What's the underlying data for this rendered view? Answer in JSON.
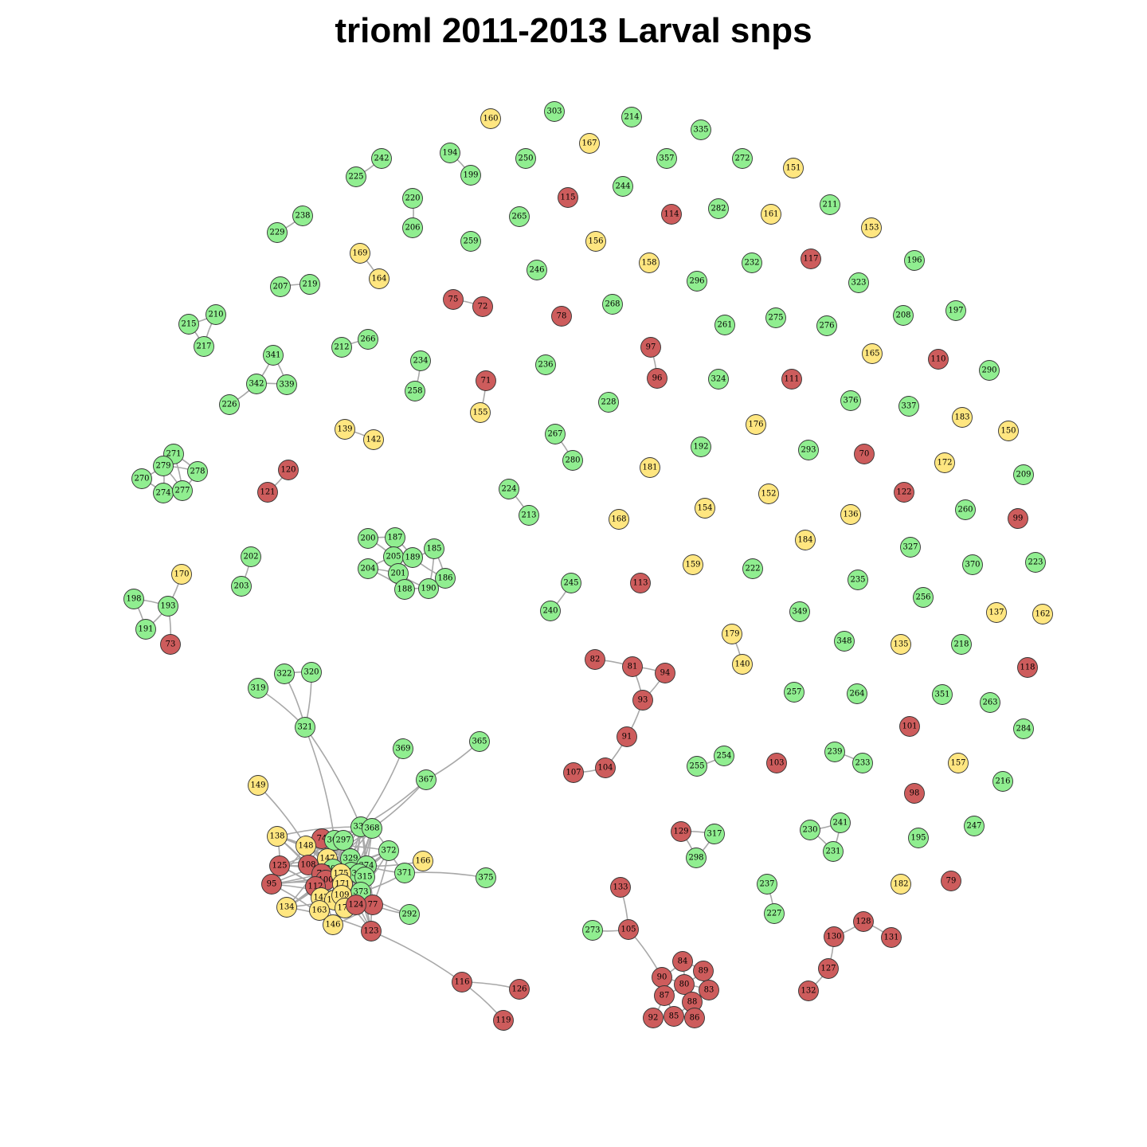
{
  "title": "trioml 2011-2013 Larval snps",
  "colors": {
    "green": "#90ee90",
    "red": "#cd5c5c",
    "yellow": "#ffe680",
    "edge": "#a8a8a8"
  },
  "nodes": [
    [
      "160",
      "yellow"
    ],
    [
      "303",
      "green"
    ],
    [
      "214",
      "green"
    ],
    [
      "335",
      "green"
    ],
    [
      "167",
      "yellow"
    ],
    [
      "272",
      "green"
    ],
    [
      "151",
      "yellow"
    ],
    [
      "242",
      "green"
    ],
    [
      "225",
      "green"
    ],
    [
      "194",
      "green"
    ],
    [
      "199",
      "green"
    ],
    [
      "250",
      "green"
    ],
    [
      "357",
      "green"
    ],
    [
      "220",
      "green"
    ],
    [
      "206",
      "green"
    ],
    [
      "115",
      "red"
    ],
    [
      "244",
      "green"
    ],
    [
      "265",
      "green"
    ],
    [
      "114",
      "red"
    ],
    [
      "282",
      "green"
    ],
    [
      "161",
      "yellow"
    ],
    [
      "211",
      "green"
    ],
    [
      "153",
      "yellow"
    ],
    [
      "238",
      "green"
    ],
    [
      "229",
      "green"
    ],
    [
      "259",
      "green"
    ],
    [
      "156",
      "yellow"
    ],
    [
      "158",
      "yellow"
    ],
    [
      "232",
      "green"
    ],
    [
      "117",
      "red"
    ],
    [
      "196",
      "green"
    ],
    [
      "169",
      "yellow"
    ],
    [
      "164",
      "yellow"
    ],
    [
      "246",
      "green"
    ],
    [
      "296",
      "green"
    ],
    [
      "323",
      "green"
    ],
    [
      "207",
      "green"
    ],
    [
      "219",
      "green"
    ],
    [
      "75",
      "red"
    ],
    [
      "72",
      "red"
    ],
    [
      "78",
      "red"
    ],
    [
      "268",
      "green"
    ],
    [
      "208",
      "green"
    ],
    [
      "197",
      "green"
    ],
    [
      "210",
      "green"
    ],
    [
      "215",
      "green"
    ],
    [
      "217",
      "green"
    ],
    [
      "261",
      "green"
    ],
    [
      "275",
      "green"
    ],
    [
      "276",
      "green"
    ],
    [
      "212",
      "green"
    ],
    [
      "266",
      "green"
    ],
    [
      "97",
      "red"
    ],
    [
      "165",
      "yellow"
    ],
    [
      "110",
      "red"
    ],
    [
      "290",
      "green"
    ],
    [
      "341",
      "green"
    ],
    [
      "234",
      "green"
    ],
    [
      "236",
      "green"
    ],
    [
      "96",
      "red"
    ],
    [
      "324",
      "green"
    ],
    [
      "111",
      "red"
    ],
    [
      "342",
      "green"
    ],
    [
      "339",
      "green"
    ],
    [
      "226",
      "green"
    ],
    [
      "71",
      "red"
    ],
    [
      "258",
      "green"
    ],
    [
      "155",
      "yellow"
    ],
    [
      "228",
      "green"
    ],
    [
      "376",
      "green"
    ],
    [
      "337",
      "green"
    ],
    [
      "183",
      "yellow"
    ],
    [
      "150",
      "yellow"
    ],
    [
      "139",
      "yellow"
    ],
    [
      "142",
      "yellow"
    ],
    [
      "267",
      "green"
    ],
    [
      "176",
      "yellow"
    ],
    [
      "192",
      "green"
    ],
    [
      "293",
      "green"
    ],
    [
      "70",
      "red"
    ],
    [
      "172",
      "yellow"
    ],
    [
      "271",
      "green"
    ],
    [
      "279",
      "green"
    ],
    [
      "278",
      "green"
    ],
    [
      "270",
      "green"
    ],
    [
      "274",
      "green"
    ],
    [
      "277",
      "green"
    ],
    [
      "120",
      "red"
    ],
    [
      "121",
      "red"
    ],
    [
      "280",
      "green"
    ],
    [
      "181",
      "yellow"
    ],
    [
      "209",
      "green"
    ],
    [
      "224",
      "green"
    ],
    [
      "213",
      "green"
    ],
    [
      "152",
      "yellow"
    ],
    [
      "154",
      "yellow"
    ],
    [
      "122",
      "red"
    ],
    [
      "260",
      "green"
    ],
    [
      "99",
      "red"
    ],
    [
      "168",
      "yellow"
    ],
    [
      "136",
      "yellow"
    ],
    [
      "184",
      "yellow"
    ],
    [
      "327",
      "green"
    ],
    [
      "200",
      "green"
    ],
    [
      "187",
      "green"
    ],
    [
      "185",
      "green"
    ],
    [
      "205",
      "green"
    ],
    [
      "189",
      "green"
    ],
    [
      "204",
      "green"
    ],
    [
      "201",
      "green"
    ],
    [
      "186",
      "green"
    ],
    [
      "188",
      "green"
    ],
    [
      "190",
      "green"
    ],
    [
      "202",
      "green"
    ],
    [
      "203",
      "green"
    ],
    [
      "170",
      "yellow"
    ],
    [
      "245",
      "green"
    ],
    [
      "240",
      "green"
    ],
    [
      "113",
      "red"
    ],
    [
      "159",
      "yellow"
    ],
    [
      "222",
      "green"
    ],
    [
      "235",
      "green"
    ],
    [
      "370",
      "green"
    ],
    [
      "223",
      "green"
    ],
    [
      "198",
      "green"
    ],
    [
      "193",
      "green"
    ],
    [
      "191",
      "green"
    ],
    [
      "73",
      "red"
    ],
    [
      "256",
      "green"
    ],
    [
      "349",
      "green"
    ],
    [
      "137",
      "yellow"
    ],
    [
      "162",
      "yellow"
    ],
    [
      "179",
      "yellow"
    ],
    [
      "140",
      "yellow"
    ],
    [
      "348",
      "green"
    ],
    [
      "135",
      "yellow"
    ],
    [
      "218",
      "green"
    ],
    [
      "118",
      "red"
    ],
    [
      "82",
      "red"
    ],
    [
      "81",
      "red"
    ],
    [
      "94",
      "red"
    ],
    [
      "93",
      "red"
    ],
    [
      "91",
      "red"
    ],
    [
      "104",
      "red"
    ],
    [
      "107",
      "red"
    ],
    [
      "322",
      "green"
    ],
    [
      "320",
      "green"
    ],
    [
      "319",
      "green"
    ],
    [
      "321",
      "green"
    ],
    [
      "257",
      "green"
    ],
    [
      "264",
      "green"
    ],
    [
      "351",
      "green"
    ],
    [
      "263",
      "green"
    ],
    [
      "101",
      "red"
    ],
    [
      "284",
      "green"
    ],
    [
      "369",
      "green"
    ],
    [
      "365",
      "green"
    ],
    [
      "367",
      "green"
    ],
    [
      "254",
      "green"
    ],
    [
      "255",
      "green"
    ],
    [
      "103",
      "red"
    ],
    [
      "239",
      "green"
    ],
    [
      "233",
      "green"
    ],
    [
      "157",
      "yellow"
    ],
    [
      "216",
      "green"
    ],
    [
      "98",
      "red"
    ],
    [
      "149",
      "yellow"
    ],
    [
      "241",
      "green"
    ],
    [
      "230",
      "green"
    ],
    [
      "231",
      "green"
    ],
    [
      "247",
      "green"
    ],
    [
      "195",
      "green"
    ],
    [
      "129",
      "red"
    ],
    [
      "317",
      "green"
    ],
    [
      "298",
      "green"
    ],
    [
      "138",
      "yellow"
    ],
    [
      "74",
      "red"
    ],
    [
      "148",
      "yellow"
    ],
    [
      "304",
      "green"
    ],
    [
      "297",
      "green"
    ],
    [
      "333",
      "green"
    ],
    [
      "368",
      "green"
    ],
    [
      "372",
      "green"
    ],
    [
      "329",
      "green"
    ],
    [
      "147",
      "yellow"
    ],
    [
      "125",
      "red"
    ],
    [
      "108",
      "red"
    ],
    [
      "374",
      "green"
    ],
    [
      "166",
      "yellow"
    ],
    [
      "300",
      "green"
    ],
    [
      "371",
      "green"
    ],
    [
      "76",
      "red"
    ],
    [
      "377",
      "green"
    ],
    [
      "330",
      "green"
    ],
    [
      "375",
      "green"
    ],
    [
      "95",
      "red"
    ],
    [
      "100",
      "red"
    ],
    [
      "175",
      "yellow"
    ],
    [
      "315",
      "green"
    ],
    [
      "112",
      "red"
    ],
    [
      "171",
      "yellow"
    ],
    [
      "373",
      "green"
    ],
    [
      "143",
      "yellow"
    ],
    [
      "174",
      "yellow"
    ],
    [
      "109",
      "yellow"
    ],
    [
      "77",
      "red"
    ],
    [
      "134",
      "yellow"
    ],
    [
      "163",
      "yellow"
    ],
    [
      "173",
      "yellow"
    ],
    [
      "124",
      "red"
    ],
    [
      "292",
      "green"
    ],
    [
      "146",
      "yellow"
    ],
    [
      "123",
      "red"
    ],
    [
      "237",
      "green"
    ],
    [
      "182",
      "yellow"
    ],
    [
      "79",
      "red"
    ],
    [
      "227",
      "green"
    ],
    [
      "133",
      "red"
    ],
    [
      "105",
      "red"
    ],
    [
      "273",
      "green"
    ],
    [
      "128",
      "red"
    ],
    [
      "130",
      "red"
    ],
    [
      "131",
      "red"
    ],
    [
      "127",
      "red"
    ],
    [
      "132",
      "red"
    ],
    [
      "84",
      "red"
    ],
    [
      "90",
      "red"
    ],
    [
      "89",
      "red"
    ],
    [
      "80",
      "red"
    ],
    [
      "83",
      "red"
    ],
    [
      "87",
      "red"
    ],
    [
      "88",
      "red"
    ],
    [
      "92",
      "red"
    ],
    [
      "85",
      "red"
    ],
    [
      "86",
      "red"
    ],
    [
      "116",
      "red"
    ],
    [
      "126",
      "red"
    ],
    [
      "119",
      "red"
    ]
  ]
}
